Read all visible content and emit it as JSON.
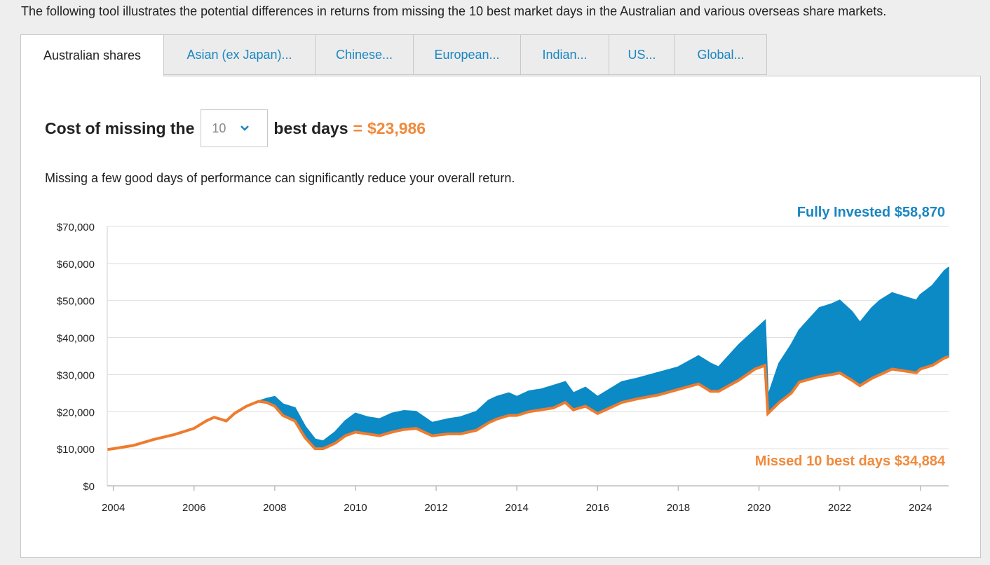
{
  "intro": "The following tool illustrates the potential differences in returns from missing the 10 best market days in the Australian and various overseas share markets.",
  "tabs": [
    {
      "label": "Australian shares",
      "active": true
    },
    {
      "label": "Asian (ex Japan)..."
    },
    {
      "label": "Chinese..."
    },
    {
      "label": "European..."
    },
    {
      "label": "Indian..."
    },
    {
      "label": "US..."
    },
    {
      "label": "Global..."
    }
  ],
  "cost": {
    "prefix": "Cost of missing the",
    "selected_days": "10",
    "suffix": "best days",
    "equals": "=",
    "value": "$23,986"
  },
  "subtitle": "Missing a few good days of performance can significantly reduce your overall return.",
  "colors": {
    "fully_invested": "#0b8ac6",
    "missed": "#ee7b2e",
    "label_blue": "#1a86c1",
    "accent_orange": "#f08a3c"
  },
  "chart_data": {
    "type": "area",
    "y_tick_labels": [
      "$0",
      "$10,000",
      "$20,000",
      "$30,000",
      "$40,000",
      "$50,000",
      "$60,000",
      "$70,000"
    ],
    "x_tick_labels": [
      "2004",
      "2006",
      "2008",
      "2010",
      "2012",
      "2014",
      "2016",
      "2018",
      "2020",
      "2022",
      "2024"
    ],
    "ylim": [
      0,
      70000
    ],
    "xlim": [
      2003.85,
      2024.7
    ],
    "grid": true,
    "series": [
      {
        "name": "Fully Invested",
        "label": "Fully Invested $58,870",
        "x": [
          2003.85,
          2004.0,
          2004.5,
          2005.0,
          2005.5,
          2006.0,
          2006.3,
          2006.5,
          2006.8,
          2007.0,
          2007.3,
          2007.6,
          2007.8,
          2008.0,
          2008.2,
          2008.5,
          2008.75,
          2009.0,
          2009.2,
          2009.5,
          2009.75,
          2010.0,
          2010.3,
          2010.6,
          2010.9,
          2011.2,
          2011.5,
          2011.9,
          2012.3,
          2012.6,
          2013.0,
          2013.3,
          2013.5,
          2013.8,
          2014.0,
          2014.3,
          2014.6,
          2014.9,
          2015.2,
          2015.4,
          2015.7,
          2016.0,
          2016.3,
          2016.6,
          2017.0,
          2017.5,
          2018.0,
          2018.5,
          2018.8,
          2019.0,
          2019.5,
          2019.9,
          2020.15,
          2020.22,
          2020.5,
          2020.8,
          2021.0,
          2021.5,
          2021.8,
          2022.0,
          2022.3,
          2022.5,
          2022.8,
          2023.0,
          2023.3,
          2023.6,
          2023.9,
          2024.0,
          2024.3,
          2024.6,
          2024.7
        ],
        "y": [
          9800,
          10000,
          10900,
          12500,
          13800,
          15500,
          17500,
          18500,
          17500,
          19500,
          21500,
          22800,
          23500,
          24000,
          22000,
          21000,
          16000,
          12500,
          12000,
          14500,
          17500,
          19500,
          18500,
          18000,
          19500,
          20200,
          20000,
          17000,
          18000,
          18500,
          20000,
          23000,
          24000,
          25000,
          24000,
          25500,
          26000,
          27000,
          28000,
          25000,
          26500,
          24000,
          26000,
          28000,
          29000,
          30500,
          32000,
          35000,
          33000,
          32000,
          38000,
          42000,
          44500,
          24000,
          33000,
          38000,
          42000,
          48000,
          49000,
          50000,
          47000,
          44000,
          48000,
          50000,
          52000,
          51000,
          50000,
          51500,
          54000,
          58000,
          58870
        ]
      },
      {
        "name": "Missed 10 best days",
        "label": "Missed 10 best days $34,884",
        "x": [
          2003.85,
          2004.0,
          2004.5,
          2005.0,
          2005.5,
          2006.0,
          2006.3,
          2006.5,
          2006.8,
          2007.0,
          2007.3,
          2007.6,
          2007.8,
          2008.0,
          2008.2,
          2008.5,
          2008.75,
          2009.0,
          2009.2,
          2009.5,
          2009.75,
          2010.0,
          2010.3,
          2010.6,
          2010.9,
          2011.2,
          2011.5,
          2011.9,
          2012.3,
          2012.6,
          2013.0,
          2013.3,
          2013.5,
          2013.8,
          2014.0,
          2014.3,
          2014.6,
          2014.9,
          2015.2,
          2015.4,
          2015.7,
          2016.0,
          2016.3,
          2016.6,
          2017.0,
          2017.5,
          2018.0,
          2018.5,
          2018.8,
          2019.0,
          2019.5,
          2019.9,
          2020.15,
          2020.22,
          2020.5,
          2020.8,
          2021.0,
          2021.5,
          2021.8,
          2022.0,
          2022.3,
          2022.5,
          2022.8,
          2023.0,
          2023.3,
          2023.6,
          2023.9,
          2024.0,
          2024.3,
          2024.6,
          2024.7
        ],
        "y": [
          9800,
          10000,
          10900,
          12500,
          13800,
          15500,
          17500,
          18500,
          17500,
          19500,
          21500,
          22800,
          22500,
          21500,
          19000,
          17500,
          13000,
          10000,
          10000,
          11500,
          13500,
          14500,
          14000,
          13500,
          14500,
          15200,
          15500,
          13500,
          14000,
          14000,
          15000,
          17000,
          18000,
          19000,
          19000,
          20000,
          20500,
          21000,
          22500,
          20500,
          21500,
          19500,
          21000,
          22500,
          23500,
          24500,
          26000,
          27500,
          25500,
          25500,
          28500,
          31500,
          32500,
          19500,
          22500,
          25000,
          28000,
          29500,
          30000,
          30500,
          28500,
          27000,
          29000,
          30000,
          31500,
          31000,
          30500,
          31500,
          32500,
          34500,
          34884
        ]
      }
    ]
  }
}
